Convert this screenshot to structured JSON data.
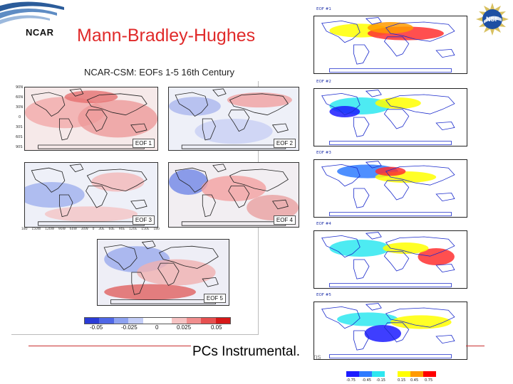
{
  "header": {
    "logo_text": "NCAR",
    "title": "Mann-Bradley-Hughes",
    "subtitle": "NCAR-CSM: EOFs 1-5 16th Century",
    "nsf_logo_text": "NSF"
  },
  "left_maps": [
    {
      "label": "EOF 1"
    },
    {
      "label": "EOF 2"
    },
    {
      "label": "EOF 3"
    },
    {
      "label": "EOF 4"
    },
    {
      "label": "EOF 5"
    }
  ],
  "left_axes": {
    "lat_ticks": [
      "90N",
      "60N",
      "30N",
      "0",
      "30S",
      "60S",
      "90S"
    ],
    "lon_ticks": [
      "180",
      "150W",
      "120W",
      "90W",
      "60W",
      "30W",
      "0",
      "30E",
      "60E",
      "90E",
      "120E",
      "150E",
      "180"
    ]
  },
  "left_colorbar": {
    "labels": [
      "-0.05",
      "-0.025",
      "0",
      "0.025",
      "0.05"
    ],
    "colors": [
      "#2a3bd6",
      "#4f67e6",
      "#8ea2f0",
      "#c3cdf6",
      "#ffffff",
      "#ffffff",
      "#f6c3c3",
      "#f08e8e",
      "#e65050",
      "#d61818"
    ]
  },
  "right_maps": [
    {
      "title": "EOF #1"
    },
    {
      "title": "EOF #2"
    },
    {
      "title": "EOF #3"
    },
    {
      "title": "EOF #4"
    },
    {
      "title": "EOF #5"
    }
  ],
  "right_colorbar": {
    "labels": [
      "-0.75",
      "-0.45",
      "-0.15",
      "0.15",
      "0.45",
      "0.75"
    ],
    "colors": [
      "#1c1cff",
      "#2f7bff",
      "#2ee7f0",
      "#ffffff",
      "#ffff00",
      "#ff9a00",
      "#ff0000"
    ]
  },
  "footer": {
    "text": "PCs Instrumental.",
    "trailing": "ns"
  }
}
